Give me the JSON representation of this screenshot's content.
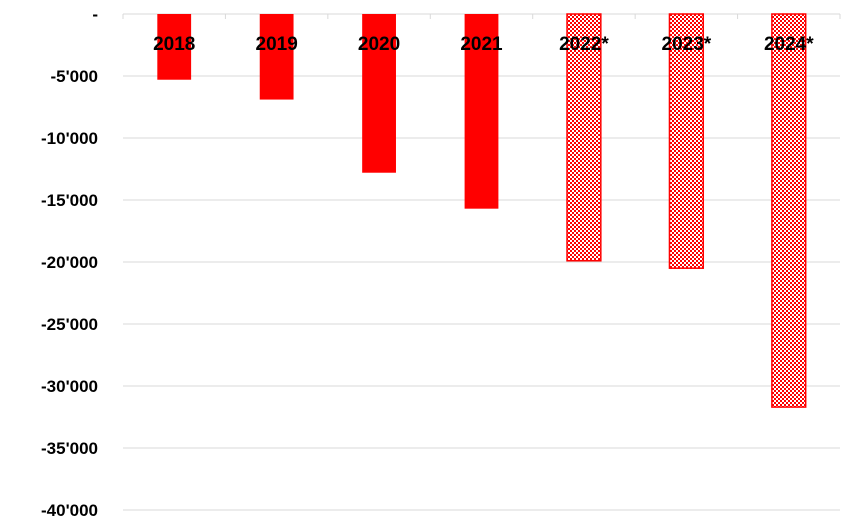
{
  "chart_data": {
    "type": "bar",
    "title": "",
    "xlabel": "",
    "ylabel": "",
    "categories": [
      "2018",
      "2019",
      "2020",
      "2021",
      "2022*",
      "2023*",
      "2024*"
    ],
    "values": [
      -5300,
      -6900,
      -12800,
      -15700,
      -19900,
      -20500,
      -31700
    ],
    "forecast": [
      false,
      false,
      false,
      false,
      true,
      true,
      true
    ],
    "ylim": [
      -40000,
      0
    ],
    "yticks": [
      {
        "value": 0,
        "label": "-"
      },
      {
        "value": -5000,
        "label": "-5'000"
      },
      {
        "value": -10000,
        "label": "-10'000"
      },
      {
        "value": -15000,
        "label": "-15'000"
      },
      {
        "value": -20000,
        "label": "-20'000"
      },
      {
        "value": -25000,
        "label": "-25'000"
      },
      {
        "value": -30000,
        "label": "-30'000"
      },
      {
        "value": -35000,
        "label": "-35'000"
      },
      {
        "value": -40000,
        "label": "-40'000"
      }
    ],
    "grid": true,
    "colors": {
      "bar": "#ff0000",
      "forecast_fill": "#f4b0b0",
      "forecast_edge": "#ff0000",
      "grid": "#d9d9d9",
      "text": "#000000"
    }
  }
}
